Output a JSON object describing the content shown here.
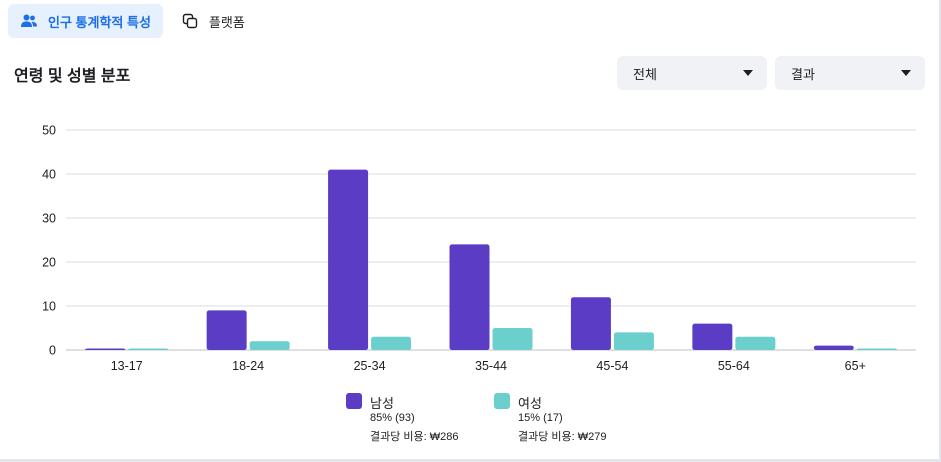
{
  "tabs": [
    {
      "label": "인구 통계학적 특성",
      "icon": "people-icon",
      "active": true
    },
    {
      "label": "플랫폼",
      "icon": "platform-icon",
      "active": false
    }
  ],
  "section": {
    "title": "연령 및 성별 분포"
  },
  "filters": [
    {
      "value": "전체"
    },
    {
      "value": "결과"
    }
  ],
  "colors": {
    "male": "#5b3cc4",
    "female": "#6bcfce",
    "accent": "#1b6fe8"
  },
  "legend": [
    {
      "name": "남성",
      "share": "85% (93)",
      "cost": "결과당 비용: ₩286",
      "color": "#5b3cc4"
    },
    {
      "name": "여성",
      "share": "15% (17)",
      "cost": "결과당 비용: ₩279",
      "color": "#6bcfce"
    }
  ],
  "chart_data": {
    "type": "bar",
    "categories": [
      "13-17",
      "18-24",
      "25-34",
      "35-44",
      "45-54",
      "55-64",
      "65+"
    ],
    "series": [
      {
        "name": "남성",
        "values": [
          0,
          9,
          41,
          24,
          12,
          6,
          1
        ]
      },
      {
        "name": "여성",
        "values": [
          0,
          2,
          3,
          5,
          4,
          3,
          0
        ]
      }
    ],
    "ylim": [
      0,
      50
    ],
    "yticks": [
      0,
      10,
      20,
      30,
      40,
      50
    ],
    "grid": true
  }
}
